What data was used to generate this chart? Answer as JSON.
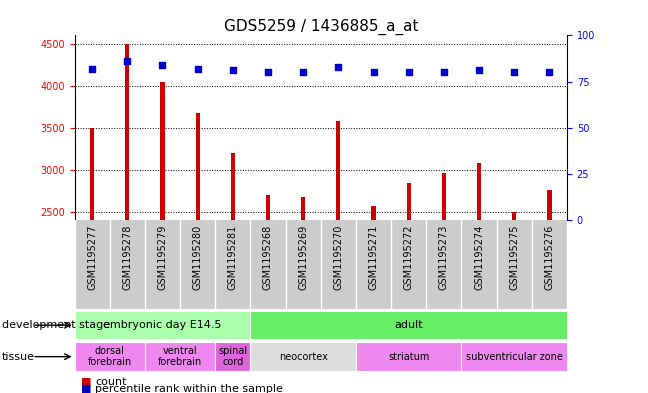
{
  "title": "GDS5259 / 1436885_a_at",
  "samples": [
    "GSM1195277",
    "GSM1195278",
    "GSM1195279",
    "GSM1195280",
    "GSM1195281",
    "GSM1195268",
    "GSM1195269",
    "GSM1195270",
    "GSM1195271",
    "GSM1195272",
    "GSM1195273",
    "GSM1195274",
    "GSM1195275",
    "GSM1195276"
  ],
  "counts": [
    3500,
    4500,
    4050,
    3680,
    3200,
    2700,
    2680,
    3580,
    2570,
    2840,
    2960,
    3080,
    2500,
    2760
  ],
  "percentiles": [
    82,
    86,
    84,
    82,
    81,
    80,
    80,
    83,
    80,
    80,
    80,
    81,
    80,
    80
  ],
  "ylim_left": [
    2400,
    4600
  ],
  "ylim_right": [
    0,
    100
  ],
  "yticks_left": [
    2500,
    3000,
    3500,
    4000,
    4500
  ],
  "yticks_right": [
    0,
    25,
    50,
    75,
    100
  ],
  "bar_color": "#cc0000",
  "scatter_color": "#0000cc",
  "bg_color": "#ffffff",
  "sample_bg_color": "#cccccc",
  "development_stage_label": "development stage",
  "tissue_label": "tissue",
  "stages": [
    {
      "label": "embryonic day E14.5",
      "start": 0,
      "end": 4,
      "color": "#aaffaa"
    },
    {
      "label": "adult",
      "start": 5,
      "end": 13,
      "color": "#66ee66"
    }
  ],
  "tissues": [
    {
      "label": "dorsal\nforebrain",
      "start": 0,
      "end": 1,
      "color": "#ee88ee"
    },
    {
      "label": "ventral\nforebrain",
      "start": 2,
      "end": 3,
      "color": "#ee88ee"
    },
    {
      "label": "spinal\ncord",
      "start": 4,
      "end": 4,
      "color": "#dd66dd"
    },
    {
      "label": "neocortex",
      "start": 5,
      "end": 7,
      "color": "#dddddd"
    },
    {
      "label": "striatum",
      "start": 8,
      "end": 10,
      "color": "#ee88ee"
    },
    {
      "label": "subventricular zone",
      "start": 11,
      "end": 13,
      "color": "#ee88ee"
    }
  ],
  "legend_count_label": "count",
  "legend_pct_label": "percentile rank within the sample",
  "title_fontsize": 11,
  "tick_fontsize": 7,
  "label_fontsize": 8,
  "annot_fontsize": 8
}
